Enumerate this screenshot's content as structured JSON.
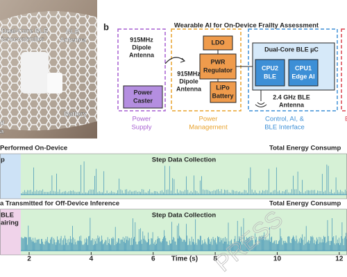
{
  "photo": {
    "labels": [
      "Dual-Core BLE",
      "icrocontroller",
      "BLE",
      "Antenna",
      "Battery",
      "d",
      "a"
    ]
  },
  "panel_b": {
    "letter": "b",
    "title": "Wearable AI for On-Device Frailty Assessment",
    "supply": {
      "antenna": [
        "915MHz",
        "Dipole",
        "Antenna"
      ],
      "caster": [
        "Power",
        "Caster"
      ],
      "caption": [
        "Power",
        "Supply"
      ]
    },
    "management": {
      "ldo": "LDO",
      "regulator": [
        "PWR",
        "Regulator"
      ],
      "battery": [
        "LiPo",
        "Battery"
      ],
      "antenna": [
        "915MHz",
        "Dipole",
        "Antenna"
      ],
      "caption": [
        "Power",
        "Management"
      ]
    },
    "control": {
      "title": "Dual-Core BLE µC",
      "cpu2": [
        "CPU2",
        "BLE"
      ],
      "cpu1": [
        "CPU1",
        "Edge AI"
      ],
      "antenna": [
        "2.4 GHz BLE",
        "Antenna"
      ],
      "caption": [
        "Control, AI, &",
        "BLE Interface"
      ]
    },
    "cut_caption": "B"
  },
  "plots": [
    {
      "title": "Performed On-Device",
      "right_label": "Total Energy Consump",
      "segments": [
        {
          "label": [
            "p"
          ],
          "start": 1.06,
          "end": 1.73,
          "color": "#cde2f6"
        },
        {
          "label": [
            "Step Data Collection"
          ],
          "start": 1.73,
          "end": 12.25,
          "color": "#d6f1d6"
        }
      ]
    },
    {
      "title": "a Transmitted for Off-Device Inference",
      "right_label": "Total Energy Consump",
      "segments": [
        {
          "label": [
            "BLE",
            "airing"
          ],
          "start": 1.06,
          "end": 1.73,
          "color": "#f0d3ea"
        },
        {
          "label": [
            "Step Data Collection"
          ],
          "start": 1.73,
          "end": 12.25,
          "color": "#d6f1d6"
        }
      ]
    }
  ],
  "x_axis": {
    "xlim": [
      1.06,
      12.25
    ],
    "xticks": [
      2,
      4,
      6,
      8,
      10,
      12
    ],
    "xlabel": "Time (s)"
  },
  "watermark": "PRESS"
}
